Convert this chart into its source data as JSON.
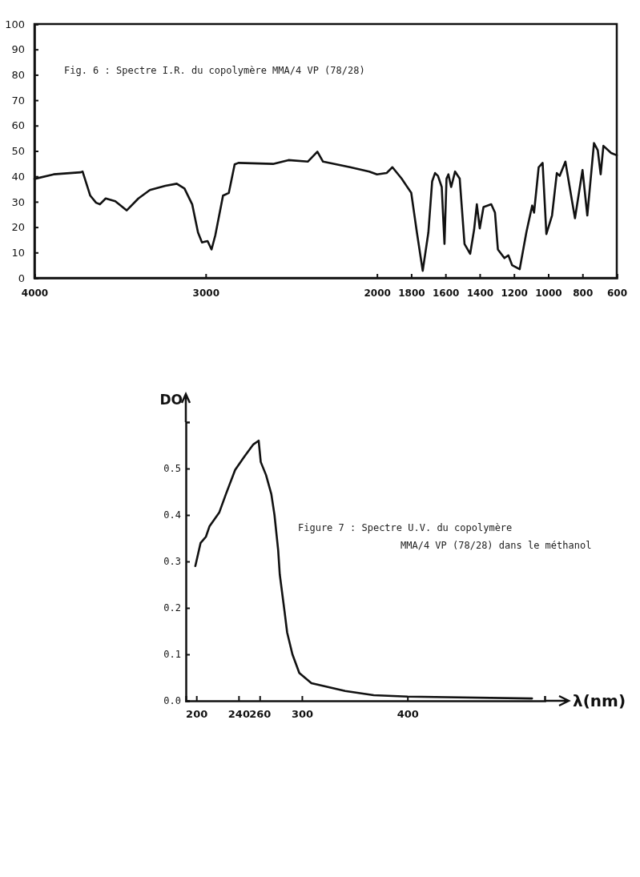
{
  "chart_data": [
    {
      "type": "line",
      "title": "Fig. 6 : Spectre I.R. du copolymère MMA/4 VP (78/28)",
      "xlim": [
        4000,
        600
      ],
      "xticks": [
        4000,
        3000,
        2000,
        1800,
        1600,
        1400,
        1200,
        1000,
        800,
        600
      ],
      "ylim": [
        0,
        100
      ],
      "yticks": [
        0,
        10,
        20,
        30,
        40,
        50,
        60,
        70,
        80,
        90,
        100
      ],
      "grid": false,
      "marker": "none",
      "line_style": "solid",
      "series": [
        {
          "color": "#111111",
          "x": [
            4000,
            3888,
            3730,
            3719,
            3674,
            3640,
            3618,
            3584,
            3528,
            3461,
            3393,
            3326,
            3236,
            3169,
            3124,
            3079,
            3045,
            3022,
            2989,
            2966,
            2944,
            2899,
            2865,
            2831,
            2809,
            2607,
            2517,
            2404,
            2348,
            2315,
            2157,
            2045,
            2000,
            1944,
            1910,
            1856,
            1800,
            1767,
            1733,
            1700,
            1678,
            1661,
            1644,
            1622,
            1606,
            1594,
            1583,
            1567,
            1544,
            1517,
            1489,
            1456,
            1433,
            1417,
            1400,
            1378,
            1333,
            1311,
            1294,
            1256,
            1233,
            1211,
            1167,
            1128,
            1094,
            1083,
            1056,
            1033,
            1011,
            978,
            950,
            933,
            900,
            861,
            844,
            800,
            772,
            733,
            711,
            694,
            678,
            633,
            600
          ],
          "values": [
            39,
            40.8,
            41.6,
            41.9,
            32.4,
            29.6,
            29,
            31.3,
            30.2,
            26.6,
            31.3,
            34.6,
            36.3,
            37.1,
            35.2,
            29,
            17.9,
            14,
            14.5,
            11.2,
            16.8,
            32.4,
            33.5,
            44.7,
            45.3,
            44.9,
            46.4,
            45.8,
            49.7,
            45.8,
            43.6,
            41.9,
            40.8,
            41.3,
            43.6,
            39.1,
            33.5,
            17.9,
            2.8,
            17.9,
            38,
            41.3,
            40.2,
            35.8,
            13.4,
            39.1,
            40.8,
            35.8,
            41.9,
            39.1,
            13.4,
            9.5,
            19,
            29,
            19.5,
            27.9,
            29,
            25.7,
            11.2,
            7.8,
            8.9,
            5,
            3.4,
            17.9,
            28.5,
            25.7,
            43.6,
            45.3,
            17.3,
            24.6,
            41.3,
            40.2,
            45.8,
            30.2,
            23.5,
            42.5,
            24.6,
            53.1,
            50.3,
            40.8,
            52,
            49.2,
            48.3
          ]
        }
      ]
    },
    {
      "type": "line",
      "title": "Figure 7 : Spectre U.V. du copolymère MMA/4 VP (78/28) dans le méthanol",
      "xlabel": "λ(nm)",
      "ylabel": "DO",
      "xlim": [
        190,
        530
      ],
      "xticks": [
        200,
        240,
        260,
        300,
        400
      ],
      "ylim": [
        0,
        0.6
      ],
      "yticks": [
        {
          "value": 0,
          "label": "0.0"
        },
        0.1,
        0.2,
        0.3,
        0.4,
        0.5
      ],
      "grid": false,
      "marker": "none",
      "line_style": "solid",
      "series": [
        {
          "color": "#111111",
          "x": [
            199,
            204,
            209,
            212.5,
            221.6,
            228,
            236.7,
            245.5,
            254,
            259,
            261,
            266,
            271,
            274,
            277.5,
            279,
            283.5,
            286,
            291,
            297.5,
            309,
            341,
            368,
            400,
            518
          ],
          "values": [
            0.29,
            0.34,
            0.353,
            0.376,
            0.405,
            0.445,
            0.497,
            0.526,
            0.552,
            0.56,
            0.514,
            0.486,
            0.445,
            0.4,
            0.324,
            0.272,
            0.193,
            0.147,
            0.1,
            0.06,
            0.038,
            0.021,
            0.012,
            0.009,
            0.005
          ]
        }
      ]
    }
  ]
}
